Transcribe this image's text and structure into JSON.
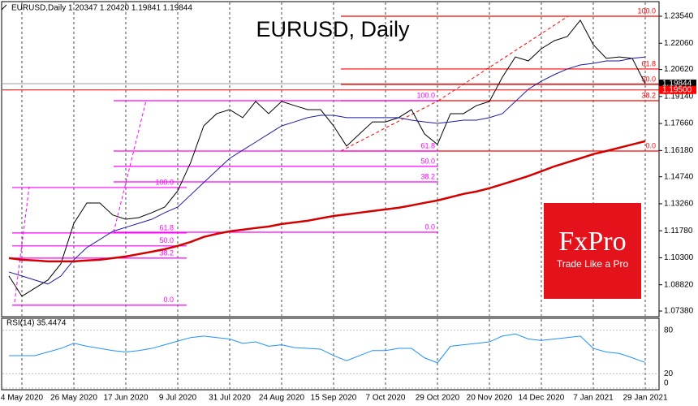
{
  "header": "EURUSD,Daily  1.20347 1.20420 1.19841 1.19844",
  "logo": {
    "brand": "FxPro",
    "tagline": "Trade Like a Pro"
  },
  "chart_data": [
    {
      "type": "line",
      "title": "EURUSD, Daily",
      "categories": [
        null,
        "4 May 2020",
        null,
        null,
        null,
        "26 May 2020",
        null,
        null,
        null,
        "17 Jun 2020",
        null,
        null,
        null,
        "9 Jul 2020",
        null,
        null,
        null,
        "31 Jul 2020",
        null,
        null,
        null,
        "24 Aug 2020",
        null,
        null,
        null,
        "15 Sep 2020",
        null,
        null,
        null,
        "7 Oct 2020",
        null,
        null,
        null,
        "29 Oct 2020",
        null,
        null,
        null,
        "20 Nov 2020",
        null,
        null,
        null,
        "14 Dec 2020",
        null,
        null,
        null,
        "7 Jan 2021",
        null,
        null,
        null,
        "29 Jan 2021"
      ],
      "series": [
        {
          "color": "#000000",
          "values": [
            1.093,
            1.0819,
            1.0863,
            1.0908,
            1.0997,
            1.1219,
            1.133,
            1.133,
            1.1264,
            1.1241,
            1.125,
            1.1277,
            1.1308,
            1.1397,
            1.1553,
            1.1753,
            1.182,
            1.1842,
            1.1798,
            1.1887,
            1.182,
            1.1887,
            1.1864,
            1.1842,
            1.1842,
            1.1753,
            1.1642,
            1.1709,
            1.1775,
            1.1775,
            1.1798,
            1.1842,
            1.1709,
            1.1651,
            1.182,
            1.182,
            1.1864,
            1.1887,
            1.202,
            1.2131,
            1.2109,
            1.2176,
            1.222,
            1.2243,
            1.2332,
            1.2198,
            1.2123,
            1.2131,
            1.2123,
            1.1984
          ]
        },
        {
          "color": "#1a1aa6",
          "values": [
            1.0952,
            1.093,
            1.0908,
            1.0886,
            1.093,
            1.1019,
            1.1086,
            1.113,
            1.1175,
            1.1197,
            1.1219,
            1.1241,
            1.1277,
            1.1308,
            1.1375,
            1.1442,
            1.1509,
            1.1575,
            1.162,
            1.1664,
            1.1709,
            1.1753,
            1.1775,
            1.1798,
            1.1811,
            1.1811,
            1.1798,
            1.1798,
            1.1798,
            1.1798,
            1.1798,
            1.1784,
            1.1775,
            1.1767,
            1.1775,
            1.1784,
            1.1784,
            1.1798,
            1.182,
            1.1887,
            1.1954,
            1.1998,
            1.2034,
            1.2065,
            1.2087,
            1.2096,
            1.2109,
            1.2109,
            1.2123,
            1.2131
          ]
        },
        {
          "color": "#d40000",
          "values": [
            1.1028,
            1.1019,
            1.1015,
            1.101,
            1.101,
            1.101,
            1.1015,
            1.1019,
            1.1028,
            1.1037,
            1.105,
            1.1063,
            1.1077,
            1.1095,
            1.1117,
            1.1144,
            1.1161,
            1.1175,
            1.1184,
            1.1193,
            1.1201,
            1.1215,
            1.1224,
            1.1233,
            1.1246,
            1.1259,
            1.1268,
            1.1277,
            1.1286,
            1.1295,
            1.1304,
            1.1317,
            1.1331,
            1.1344,
            1.1362,
            1.138,
            1.1393,
            1.1411,
            1.1433,
            1.1455,
            1.1478,
            1.1504,
            1.1531,
            1.1553,
            1.1575,
            1.1598,
            1.1615,
            1.1633,
            1.1651,
            1.1669
          ]
        }
      ],
      "ylim": [
        1.0707,
        1.2443
      ],
      "yticks": [
        {
          "value": 1.2354,
          "label": "1.23540"
        },
        {
          "value": 1.2206,
          "label": "1.22060"
        },
        {
          "value": 1.2062,
          "label": "1.20620"
        },
        {
          "value": 1.1914,
          "label": "1.19140"
        },
        {
          "value": 1.1766,
          "label": "1.17660"
        },
        {
          "value": 1.1618,
          "label": "1.16180"
        },
        {
          "value": 1.1474,
          "label": "1.14740"
        },
        {
          "value": 1.1326,
          "label": "1.13260"
        },
        {
          "value": 1.1178,
          "label": "1.11780"
        },
        {
          "value": 1.103,
          "label": "1.10300"
        },
        {
          "value": 1.0882,
          "label": "1.08820"
        },
        {
          "value": 1.0738,
          "label": "1.07380"
        }
      ],
      "price_markers": [
        {
          "value": 1.19844,
          "label": "1.19844",
          "color": "#000000"
        },
        {
          "value": 1.195,
          "label": "1.19500",
          "color": "#ff0000"
        }
      ],
      "fib_sets": [
        {
          "color": "#ff0000",
          "levels": [
            {
              "label": "100.0",
              "value": 1.2354
            },
            {
              "label": "61.8",
              "value": 1.2065
            },
            {
              "label": "50.0",
              "value": 1.198
            },
            {
              "label": "38.2",
              "value": 1.1891
            },
            {
              "label": "0.0",
              "value": 1.1615
            }
          ]
        },
        {
          "color": "#ff00ff",
          "levels": [
            {
              "label": "100.0",
              "value": 1.1891
            },
            {
              "label": "61.8",
              "value": 1.1615
            },
            {
              "label": "50.0",
              "value": 1.1531
            },
            {
              "label": "38.2",
              "value": 1.1446
            },
            {
              "label": "0.0",
              "value": 1.117
            }
          ]
        },
        {
          "color": "#ff00ff",
          "levels": [
            {
              "label": "100.0",
              "value": 1.1415
            },
            {
              "label": "61.8",
              "value": 1.1166
            },
            {
              "label": "50.0",
              "value": 1.1095
            },
            {
              "label": "38.2",
              "value": 1.1028
            },
            {
              "label": "0.0",
              "value": 1.077
            }
          ]
        }
      ]
    },
    {
      "type": "line",
      "title": "RSI(14) 35.4474",
      "series": [
        {
          "color": "#1e90ff",
          "values": [
            45,
            45,
            45,
            50,
            55,
            62,
            58,
            55,
            52,
            50,
            52,
            55,
            60,
            65,
            70,
            72,
            70,
            68,
            62,
            64,
            58,
            60,
            56,
            55,
            54,
            45,
            38,
            45,
            52,
            52,
            55,
            55,
            42,
            35,
            58,
            60,
            62,
            64,
            72,
            75,
            68,
            66,
            68,
            70,
            72,
            55,
            50,
            48,
            42,
            35.4474
          ]
        }
      ],
      "ylim": [
        0,
        100
      ],
      "yticks": [
        80,
        20,
        0
      ]
    }
  ]
}
